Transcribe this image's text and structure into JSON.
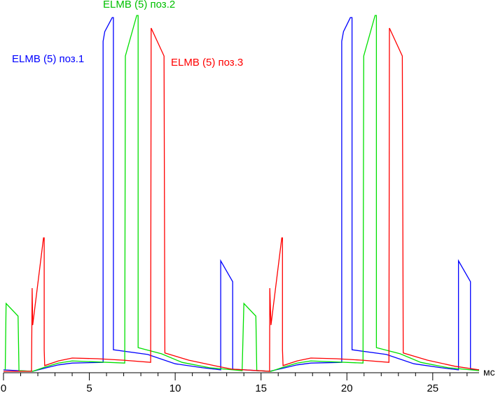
{
  "chart_data": {
    "type": "line",
    "title": "",
    "xlabel": "мс",
    "ylabel": "",
    "xlim": [
      0,
      27.7
    ],
    "ylim": [
      0,
      100
    ],
    "grid": false,
    "legend": "inline labels",
    "x_ticks": [
      "0",
      "5",
      "10",
      "15",
      "20",
      "25"
    ],
    "series": [
      {
        "name": "ELMB (5) поз.1",
        "color": "#0000ff",
        "points": [
          [
            0,
            0.4
          ],
          [
            0.8,
            0.2
          ],
          [
            1.7,
            0
          ],
          [
            2.5,
            1.0
          ],
          [
            3.2,
            1.8
          ],
          [
            4.0,
            2.3
          ],
          [
            5.8,
            2.5
          ],
          [
            5.8,
            92
          ],
          [
            5.9,
            94.7
          ],
          [
            6.33,
            98.6
          ],
          [
            6.4,
            98.6
          ],
          [
            6.4,
            6.0
          ],
          [
            8.4,
            4.7
          ],
          [
            10.0,
            2.1
          ],
          [
            11.6,
            1.0
          ],
          [
            12.65,
            0.4
          ],
          [
            12.65,
            30.8
          ],
          [
            13.35,
            25
          ],
          [
            13.35,
            0.6
          ],
          [
            15.5,
            0
          ],
          [
            16.4,
            1.0
          ],
          [
            17.1,
            1.8
          ],
          [
            17.9,
            2.3
          ],
          [
            19.7,
            2.5
          ],
          [
            19.7,
            92
          ],
          [
            19.8,
            94.7
          ],
          [
            20.2,
            98.6
          ],
          [
            20.3,
            98.6
          ],
          [
            20.3,
            6.0
          ],
          [
            22.3,
            4.7
          ],
          [
            23.9,
            2.1
          ],
          [
            25.5,
            1.0
          ],
          [
            26.5,
            0.4
          ],
          [
            26.5,
            30.8
          ],
          [
            27.2,
            25
          ],
          [
            27.2,
            0.6
          ],
          [
            27.7,
            0.4
          ]
        ]
      },
      {
        "name": "ELMB (5) поз.2",
        "color": "#00e000",
        "points": [
          [
            0.1,
            0.4
          ],
          [
            0.15,
            18.9
          ],
          [
            0.85,
            15.4
          ],
          [
            0.9,
            0.2
          ],
          [
            1.7,
            0
          ],
          [
            2.5,
            1.3
          ],
          [
            3.2,
            2.3
          ],
          [
            4.0,
            2.9
          ],
          [
            7.06,
            2.3
          ],
          [
            7.1,
            87.9
          ],
          [
            7.76,
            99.2
          ],
          [
            7.84,
            99.2
          ],
          [
            7.84,
            6.6
          ],
          [
            9.2,
            4.9
          ],
          [
            10.4,
            2.5
          ],
          [
            12.0,
            1.0
          ],
          [
            13.9,
            0.2
          ],
          [
            14.0,
            18.9
          ],
          [
            14.7,
            15.4
          ],
          [
            14.75,
            0.2
          ],
          [
            15.58,
            0
          ],
          [
            16.4,
            1.3
          ],
          [
            17.1,
            2.3
          ],
          [
            17.9,
            2.9
          ],
          [
            20.94,
            2.3
          ],
          [
            20.98,
            87.9
          ],
          [
            21.64,
            99.2
          ],
          [
            21.72,
            99.2
          ],
          [
            21.72,
            6.6
          ],
          [
            23.1,
            4.9
          ],
          [
            24.3,
            2.5
          ],
          [
            25.9,
            1.0
          ],
          [
            27.7,
            0.2
          ]
        ]
      },
      {
        "name": "ELMB (5) поз.3",
        "color": "#ff0000",
        "points": [
          [
            0,
            0
          ],
          [
            1.63,
            0
          ],
          [
            1.67,
            23.2
          ],
          [
            1.7,
            12.9
          ],
          [
            2.33,
            37.2
          ],
          [
            2.37,
            37.2
          ],
          [
            2.37,
            6.0
          ],
          [
            2.4,
            1.6
          ],
          [
            3.2,
            2.9
          ],
          [
            4.0,
            3.7
          ],
          [
            5.5,
            3.5
          ],
          [
            7.0,
            3.1
          ],
          [
            8.57,
            2.5
          ],
          [
            8.6,
            95.7
          ],
          [
            9.35,
            87.9
          ],
          [
            9.4,
            5.1
          ],
          [
            10.8,
            3.1
          ],
          [
            12.45,
            1.4
          ],
          [
            13.3,
            0.6
          ],
          [
            15.5,
            0
          ],
          [
            15.51,
            23.2
          ],
          [
            15.58,
            12.9
          ],
          [
            16.21,
            37.2
          ],
          [
            16.25,
            37.2
          ],
          [
            16.25,
            6.0
          ],
          [
            16.28,
            1.6
          ],
          [
            17.1,
            2.9
          ],
          [
            17.9,
            3.7
          ],
          [
            19.4,
            3.5
          ],
          [
            20.9,
            3.1
          ],
          [
            22.45,
            2.5
          ],
          [
            22.48,
            95.7
          ],
          [
            23.23,
            87.9
          ],
          [
            23.28,
            5.1
          ],
          [
            24.7,
            3.1
          ],
          [
            26.3,
            1.4
          ],
          [
            27.7,
            0.4
          ]
        ]
      }
    ]
  }
}
